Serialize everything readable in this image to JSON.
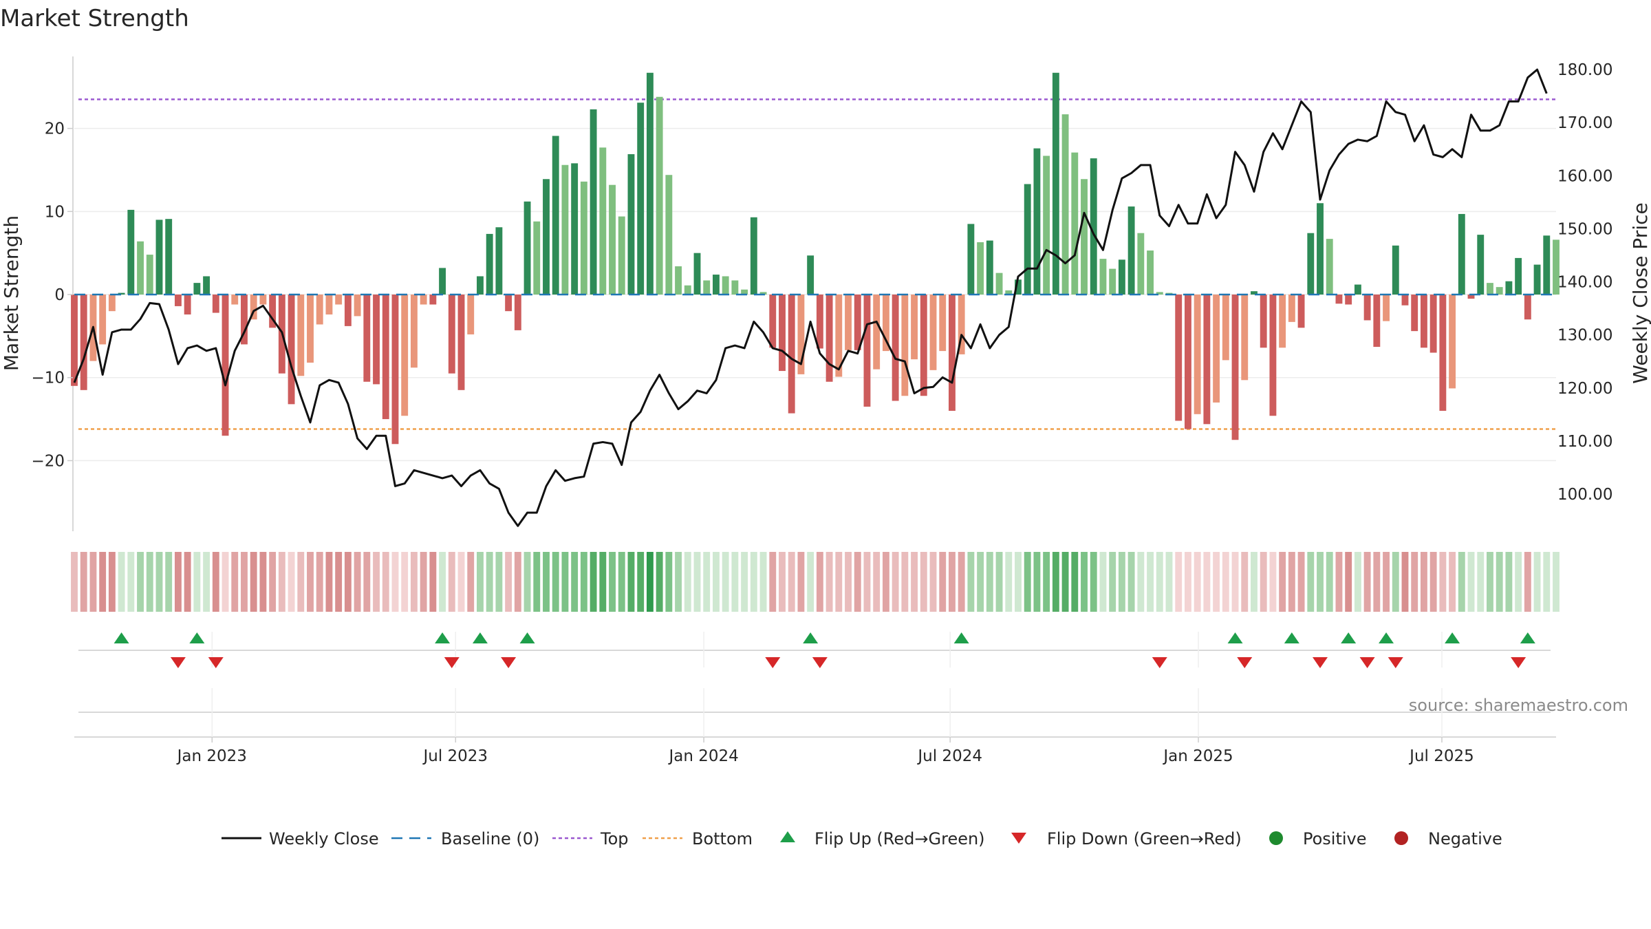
{
  "chart_data": {
    "type": "bar",
    "title": "Market Strength",
    "source": "source: sharemaestro.com",
    "ylabel_left": "Market Strength",
    "ylabel_right": "Weekly Close Price",
    "ylim_left": [
      -28.5,
      29
    ],
    "ylim_right": [
      93,
      183
    ],
    "left_ticks": [
      {
        "value": 20,
        "label": "20"
      },
      {
        "value": 10,
        "label": "10"
      },
      {
        "value": 0,
        "label": "0"
      },
      {
        "value": -10,
        "label": "−10"
      },
      {
        "value": -20,
        "label": "−20"
      }
    ],
    "right_ticks": [
      {
        "value": 180,
        "label": "180.00"
      },
      {
        "value": 170,
        "label": "170.00"
      },
      {
        "value": 160,
        "label": "160.00"
      },
      {
        "value": 150,
        "label": "150.00"
      },
      {
        "value": 140,
        "label": "140.00"
      },
      {
        "value": 130,
        "label": "130.00"
      },
      {
        "value": 120,
        "label": "120.00"
      },
      {
        "value": 110,
        "label": "110.00"
      },
      {
        "value": 100,
        "label": "100.00"
      }
    ],
    "x_range_weeks": [
      0,
      157
    ],
    "x_ticks": [
      {
        "week": 14.6,
        "label": "Jan 2023"
      },
      {
        "week": 40.4,
        "label": "Jul 2023"
      },
      {
        "week": 66.7,
        "label": "Jan 2024"
      },
      {
        "week": 92.8,
        "label": "Jul 2024"
      },
      {
        "week": 119.1,
        "label": "Jan 2025"
      },
      {
        "week": 144.9,
        "label": "Jul 2025"
      }
    ],
    "top_line": 23.5,
    "bottom_line": -16.2,
    "strength": [
      -11,
      -11.5,
      -8,
      -6,
      -2,
      0.2,
      10.2,
      6.4,
      4.8,
      9,
      9.1,
      -1.4,
      -2.4,
      1.4,
      2.2,
      -2.2,
      -17,
      -1.2,
      -6,
      -3,
      -1.2,
      -4,
      -9.5,
      -13.2,
      -9.8,
      -8.2,
      -3.6,
      -2.4,
      -1.2,
      -3.8,
      -2.6,
      -10.5,
      -10.8,
      -15,
      -18,
      -14.6,
      -8.8,
      -1.2,
      -1.2,
      3.2,
      -9.5,
      -11.5,
      -4.8,
      2.2,
      7.3,
      8.1,
      -2,
      -4.3,
      11.2,
      8.8,
      13.9,
      19.1,
      15.6,
      15.8,
      13.6,
      22.3,
      17.7,
      13.2,
      9.4,
      16.9,
      23.1,
      26.7,
      23.8,
      14.4,
      3.4,
      1.1,
      5,
      1.7,
      2.4,
      2.2,
      1.7,
      0.6,
      9.3,
      0.3,
      -6.4,
      -9.2,
      -14.3,
      -9.6,
      4.7,
      -6.5,
      -10.5,
      -9.9,
      -6.7,
      -6.7,
      -13.5,
      -9,
      -6.8,
      -12.8,
      -12.2,
      -7.8,
      -12.2,
      -9.1,
      -6.8,
      -14,
      -7.2,
      8.5,
      6.3,
      6.5,
      2.6,
      0.5,
      1.8,
      13.3,
      17.6,
      16.7,
      26.7,
      21.7,
      17.1,
      13.9,
      16.4,
      4.3,
      3.1,
      4.2,
      10.6,
      7.4,
      5.3,
      0.3,
      0.2,
      -15.2,
      -16.2,
      -14.4,
      -15.6,
      -13,
      -7.9,
      -17.5,
      -10.3,
      0.4,
      -6.4,
      -14.6,
      -6.4,
      -3.3,
      -4,
      7.4,
      11,
      6.7,
      -1.1,
      -1.2,
      1.2,
      -3.1,
      -6.3,
      -3.2,
      5.9,
      -1.3,
      -4.4,
      -6.4,
      -7,
      -14,
      -11.3,
      9.7,
      -0.5,
      7.2,
      1.4,
      0.9,
      1.6,
      4.4,
      -3,
      3.6,
      7.1,
      6.6
    ],
    "weekly_close": [
      121,
      125.5,
      131.5,
      122.5,
      130.5,
      131,
      131,
      133,
      136,
      135.8,
      131,
      124.5,
      127.5,
      128,
      127,
      127.5,
      120.5,
      127,
      130.5,
      134.5,
      135.5,
      133,
      130.5,
      124,
      118.5,
      113.5,
      120.5,
      121.5,
      121,
      117,
      110.5,
      108.5,
      111,
      111,
      101.5,
      102,
      104.5,
      104,
      103.5,
      103,
      103.5,
      101.5,
      103.5,
      104.5,
      102,
      101,
      96.5,
      94,
      96.5,
      96.5,
      101.5,
      104.5,
      102.5,
      103,
      103.3,
      109.5,
      109.8,
      109.5,
      105.5,
      113.5,
      115.5,
      119.5,
      122.5,
      119,
      116,
      117.5,
      119.5,
      119,
      121.5,
      127.5,
      128,
      127.5,
      132.5,
      130.5,
      127.5,
      127,
      125.5,
      124.5,
      132.5,
      126.5,
      124.5,
      123.5,
      127,
      126.5,
      132,
      132.5,
      129,
      125.5,
      125,
      119,
      120,
      120.2,
      122,
      121,
      130,
      127.5,
      132,
      127.5,
      130,
      131.5,
      141,
      142.5,
      142.5,
      146,
      145,
      143.5,
      145,
      153,
      149,
      146,
      153.5,
      159.5,
      160.5,
      162,
      162,
      152.5,
      150.5,
      154.5,
      151,
      151,
      156.5,
      152,
      154.5,
      164.5,
      162,
      157,
      164.5,
      168,
      165,
      169.5,
      174,
      172,
      155.5,
      161,
      164,
      166,
      166.8,
      166.5,
      167.5,
      174,
      172,
      171.5,
      166.5,
      169.5,
      164,
      163.5,
      165,
      163.5,
      171.5,
      168.5,
      168.5,
      169.5,
      174,
      174,
      178.5,
      180,
      175.5
    ],
    "heat_level": [
      -2,
      -3,
      -3,
      -4,
      -4,
      1,
      1,
      2,
      2,
      2,
      2,
      -4,
      -4,
      1,
      1,
      -4,
      -1,
      -3,
      -3,
      -4,
      -4,
      -3,
      -2,
      -1,
      -2,
      -3,
      -3,
      -4,
      -4,
      -4,
      -3,
      -3,
      -2,
      -2,
      -1,
      -1,
      -2,
      -3,
      -4,
      1,
      -2,
      -1,
      -3,
      2,
      2,
      2,
      -2,
      -3,
      2,
      3,
      3,
      3,
      3,
      3,
      3,
      4,
      4,
      3,
      3,
      4,
      4,
      5,
      4,
      3,
      2,
      1,
      1,
      1,
      1,
      1,
      1,
      1,
      1,
      1,
      -3,
      -2,
      -2,
      -3,
      1,
      -3,
      -2,
      -2,
      -2,
      -3,
      -2,
      -2,
      -3,
      -2,
      -2,
      -2,
      -2,
      -2,
      -3,
      -3,
      -3,
      2,
      2,
      2,
      2,
      1,
      1,
      3,
      3,
      3,
      4,
      4,
      4,
      3,
      3,
      1,
      2,
      2,
      2,
      1,
      1,
      1,
      1,
      -1,
      -1,
      -1,
      -1,
      -1,
      -1,
      -1,
      -2,
      1,
      -2,
      -1,
      -3,
      -3,
      -3,
      2,
      2,
      2,
      -3,
      -4,
      1,
      -3,
      -3,
      -3,
      2,
      -4,
      -3,
      -3,
      -3,
      -2,
      -2,
      2,
      1,
      1,
      2,
      2,
      2,
      1,
      -3,
      1,
      1,
      1
    ],
    "flips_up": [
      5,
      13,
      39,
      43,
      48,
      78,
      94,
      123,
      129,
      135,
      139,
      146,
      154
    ],
    "flips_down": [
      11,
      15,
      40,
      46,
      74,
      79,
      115,
      124,
      132,
      137,
      140,
      153
    ],
    "legend": [
      {
        "key": "close",
        "label": "Weekly Close"
      },
      {
        "key": "baseline",
        "label": "Baseline (0)"
      },
      {
        "key": "top",
        "label": "Top"
      },
      {
        "key": "bottom",
        "label": "Bottom"
      },
      {
        "key": "flip_up",
        "label": "Flip Up (Red→Green)"
      },
      {
        "key": "flip_down",
        "label": "Flip Down (Green→Red)"
      },
      {
        "key": "positive",
        "label": "Positive"
      },
      {
        "key": "negative",
        "label": "Negative"
      }
    ],
    "colors": {
      "pos_strong": "#2e8b57",
      "pos_light": "#7fbf7f",
      "neg_strong": "#cd5c5c",
      "neg_light": "#e9967a",
      "close_line": "#111111",
      "baseline": "#1f77b4",
      "top": "#9b59d0",
      "bottom": "#f0a04b",
      "flip_up": "#1e9e4a",
      "flip_down": "#d62728",
      "positive_dot": "#1e8a2e",
      "negative_dot": "#b22222",
      "grid": "#ececec",
      "axis": "#cccccc"
    }
  }
}
